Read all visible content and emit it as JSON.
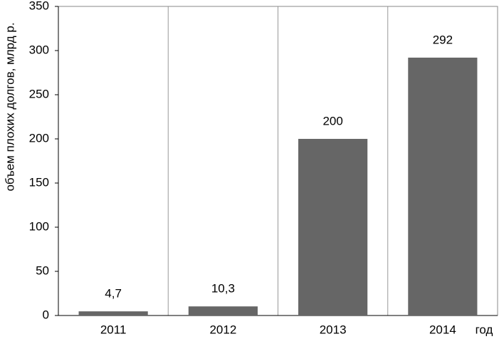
{
  "chart_data": {
    "type": "bar",
    "y_label": "объем плохих долгов, млрд р.",
    "x_label": "год",
    "categories": [
      "2011",
      "2012",
      "2013",
      "2014"
    ],
    "values": [
      4.7,
      10.3,
      200,
      292
    ],
    "value_labels": [
      "4,7",
      "10,3",
      "200",
      "292"
    ],
    "color": "#666666",
    "ylim": [
      0,
      350
    ],
    "yticks": [
      0,
      50,
      100,
      150,
      200,
      250,
      300,
      350
    ],
    "category_grid": true
  }
}
